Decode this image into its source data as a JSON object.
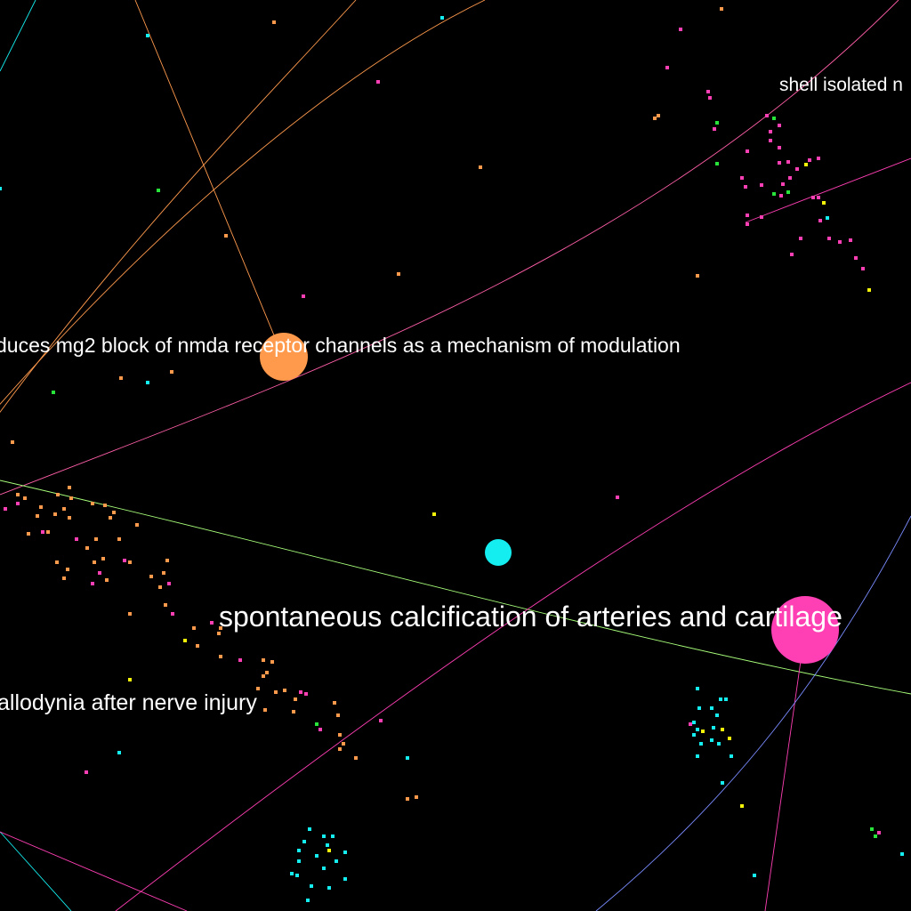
{
  "colors": {
    "background": "#000000",
    "orange": "#ff9a4d",
    "pink": "#ff3fb4",
    "cyan": "#14eef0",
    "green": "#27e33a",
    "yellow": "#f4f40a",
    "label": "#ffffff"
  },
  "labels": {
    "nmda": "duces mg2 block of nmda receptor channels as a mechanism of modulation",
    "calcification": "spontaneous calcification of arteries and cartilage",
    "allodynia": "allodynia after nerve injury",
    "shell": "shell isolated n"
  }
}
